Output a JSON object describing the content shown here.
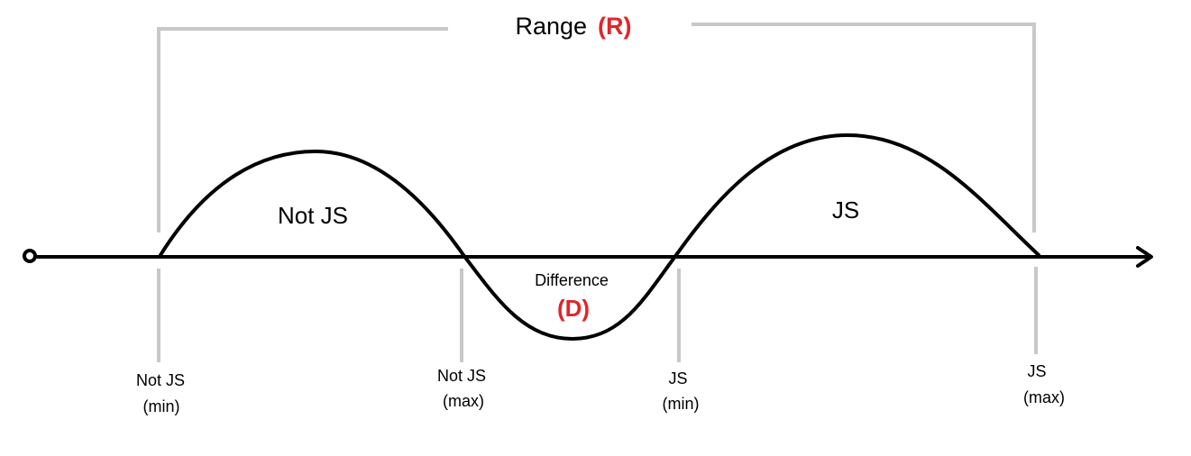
{
  "range": {
    "word": "Range",
    "symbol": "(R)"
  },
  "difference": {
    "word": "Difference",
    "symbol": "(D)"
  },
  "regions": {
    "not_js": "Not JS",
    "js": "JS"
  },
  "markers": [
    {
      "line1": "Not JS",
      "line2": "(min)"
    },
    {
      "line1": "Not JS",
      "line2": "(max)"
    },
    {
      "line1": "JS",
      "line2": "(min)"
    },
    {
      "line1": "JS",
      "line2": "(max)"
    }
  ],
  "colors": {
    "accent": "#e0252b",
    "guide": "#c8c8c8",
    "ink": "#000000"
  }
}
